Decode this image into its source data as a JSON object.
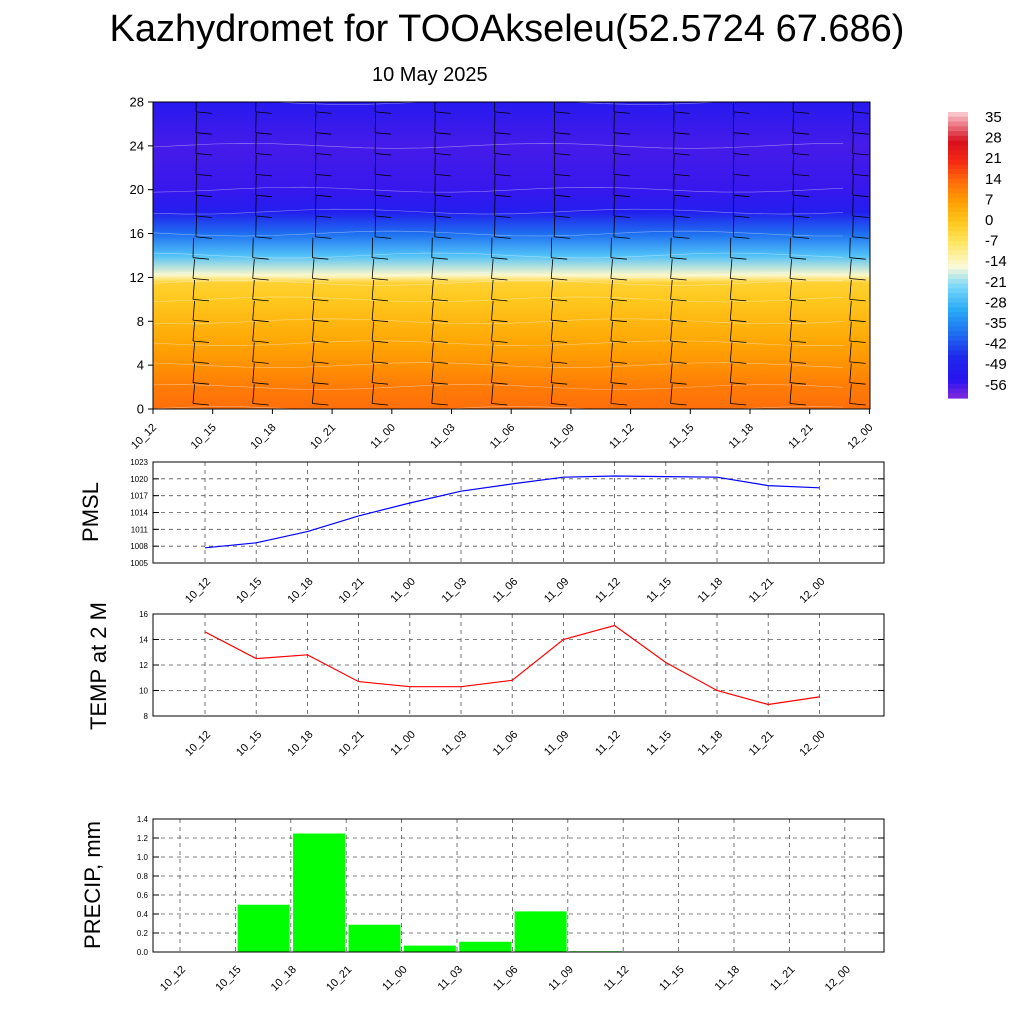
{
  "title": "Kazhydromet for TOOAkseleu(52.5724 67.686)",
  "subtitle": "10 May 2025",
  "time_labels": [
    "10_12",
    "10_15",
    "10_18",
    "10_21",
    "11_00",
    "11_03",
    "11_06",
    "11_09",
    "11_12",
    "11_15",
    "11_18",
    "11_21",
    "12_00"
  ],
  "colors": {
    "pmsl_line": "#0000ff",
    "temp_line": "#ff0000",
    "precip_bar": "#00ff00",
    "grid": "#555555"
  },
  "chart_data": [
    {
      "type": "heatmap",
      "title": "",
      "xlabel": "",
      "ylabel": "",
      "ylim": [
        0,
        28
      ],
      "y_ticks": [
        0,
        4,
        8,
        12,
        16,
        20,
        24,
        28
      ],
      "x_ticks": [
        "10_12",
        "10_15",
        "10_18",
        "10_21",
        "11_00",
        "11_03",
        "11_06",
        "11_09",
        "11_12",
        "11_15",
        "11_18",
        "11_21",
        "12_00"
      ],
      "colorbar_labels": [
        "35",
        "28",
        "21",
        "14",
        "7",
        "0",
        "-7",
        "-14",
        "-21",
        "-28",
        "-35",
        "-42",
        "-49",
        "-56"
      ],
      "colorbar_range": [
        -60,
        38
      ],
      "temperature_profile": [
        {
          "level": 0,
          "value": 14
        },
        {
          "level": 2,
          "value": 12
        },
        {
          "level": 4,
          "value": 9
        },
        {
          "level": 6,
          "value": 6
        },
        {
          "level": 8,
          "value": 3
        },
        {
          "level": 10,
          "value": 0
        },
        {
          "level": 11.5,
          "value": -2
        },
        {
          "level": 12.2,
          "value": -14
        },
        {
          "level": 14,
          "value": -26
        },
        {
          "level": 16,
          "value": -38
        },
        {
          "level": 18,
          "value": -50
        },
        {
          "level": 20,
          "value": -55
        },
        {
          "level": 24,
          "value": -56
        },
        {
          "level": 28,
          "value": -52
        }
      ],
      "overlay": "wind barbs"
    },
    {
      "type": "line",
      "ylabel": "PMSL",
      "ylim": [
        1005,
        1023
      ],
      "y_ticks": [
        1005,
        1008,
        1011,
        1014,
        1017,
        1020,
        1023
      ],
      "x": [
        "10_12",
        "10_15",
        "10_18",
        "10_21",
        "11_00",
        "11_03",
        "11_06",
        "11_09",
        "11_12",
        "11_15",
        "11_18",
        "11_21",
        "12_00"
      ],
      "values": [
        1007.7,
        1008.6,
        1010.6,
        1013.4,
        1015.7,
        1017.8,
        1019.1,
        1020.3,
        1020.5,
        1020.4,
        1020.3,
        1018.8,
        1018.4
      ]
    },
    {
      "type": "line",
      "ylabel": "TEMP at 2 M",
      "ylim": [
        8,
        16
      ],
      "y_ticks": [
        8,
        10,
        12,
        14,
        16
      ],
      "x": [
        "10_12",
        "10_15",
        "10_18",
        "10_21",
        "11_00",
        "11_03",
        "11_06",
        "11_09",
        "11_12",
        "11_15",
        "11_18",
        "11_21",
        "12_00"
      ],
      "values": [
        14.6,
        12.5,
        12.8,
        10.7,
        10.3,
        10.3,
        10.8,
        14.0,
        15.1,
        12.2,
        10.0,
        8.9,
        9.5
      ]
    },
    {
      "type": "bar",
      "ylabel": "PRECIP, mm",
      "ylim": [
        0,
        1.4
      ],
      "y_ticks": [
        "0.0",
        "0.2",
        "0.4",
        "0.6",
        "0.8",
        "1.0",
        "1.2",
        "1.4"
      ],
      "categories": [
        "10_12",
        "10_15",
        "10_18",
        "10_21",
        "11_00",
        "11_03",
        "11_06",
        "11_09",
        "11_12",
        "11_15",
        "11_18",
        "11_21",
        "12_00"
      ],
      "values": [
        0,
        0.5,
        1.25,
        0.29,
        0.07,
        0.11,
        0.43,
        0.01,
        0,
        0,
        0,
        0,
        0
      ]
    }
  ]
}
